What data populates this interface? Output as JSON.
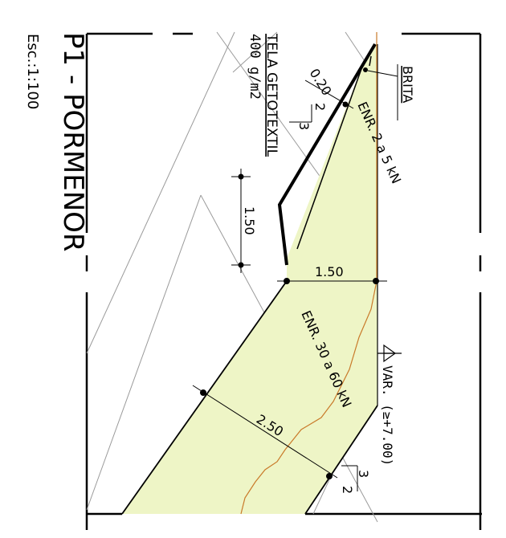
{
  "title": "P1 - PORMENOR",
  "scale": "Esc.:1:100",
  "labels": {
    "geotextile_line1": "TELA GETOTEXTIL",
    "geotextile_line2": "400 g/m2",
    "layer_thickness": "0.20",
    "brita": "BRITA",
    "upper_slope_run": "2",
    "upper_slope_rise": "3",
    "upper_fill": "ENR. 2 a 5 kN",
    "height_dim": "1.50",
    "width_dim": "1.50",
    "lower_fill": "ENR. 30 a 60 kN",
    "lower_dim": "2.50",
    "water_level": "VAR. (≥+7.00)",
    "lower_slope_run": "3",
    "lower_slope_rise": "2"
  },
  "colors": {
    "fill": "#eef5c6",
    "ground_line": "#c97a2a",
    "hatch": "#9a9a9a",
    "ink": "#000000"
  },
  "icons": {
    "water_level_marker": "triangle-down-icon",
    "slope_indicator": "slope-triangle-icon"
  }
}
